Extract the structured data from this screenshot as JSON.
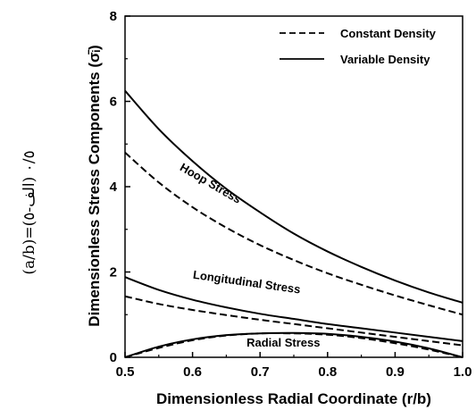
{
  "chart_data": {
    "type": "line",
    "xlabel": "Dimensionless Radial Coordinate (r/b)",
    "ylabel": "Dimensionless Stress Components (σ̄ᵢ)",
    "side_label": "(a/b)=٠/٥ (الف-٥)",
    "xlim": [
      0.5,
      1.0
    ],
    "ylim": [
      0,
      8
    ],
    "x_ticks": [
      "0.5",
      "0.6",
      "0.7",
      "0.8",
      "0.9",
      "1.0"
    ],
    "y_ticks": [
      "0",
      "2",
      "4",
      "6",
      "8"
    ],
    "legend": {
      "position": "top-right",
      "entries": [
        {
          "label": "Constant Density",
          "style": "dashed"
        },
        {
          "label": "Variable Density",
          "style": "solid"
        }
      ]
    },
    "annotations": [
      {
        "text": "Hoop Stress",
        "x": 0.58,
        "y": 4.4
      },
      {
        "text": "Longitudinal Stress",
        "x": 0.6,
        "y": 1.85
      },
      {
        "text": "Radial Stress",
        "x": 0.68,
        "y": 0.25
      }
    ],
    "series": [
      {
        "group": "hoop",
        "style": "solid",
        "x": [
          0.5,
          0.55,
          0.6,
          0.65,
          0.7,
          0.75,
          0.8,
          0.85,
          0.9,
          0.95,
          1.0
        ],
        "y": [
          6.25,
          5.35,
          4.6,
          3.95,
          3.4,
          2.9,
          2.48,
          2.12,
          1.8,
          1.52,
          1.28
        ]
      },
      {
        "group": "hoop",
        "style": "dashed",
        "x": [
          0.5,
          0.55,
          0.6,
          0.65,
          0.7,
          0.75,
          0.8,
          0.85,
          0.9,
          0.95,
          1.0
        ],
        "y": [
          4.8,
          4.1,
          3.52,
          3.04,
          2.63,
          2.28,
          1.97,
          1.7,
          1.45,
          1.22,
          1.0
        ]
      },
      {
        "group": "longitudinal",
        "style": "solid",
        "x": [
          0.5,
          0.55,
          0.6,
          0.65,
          0.7,
          0.75,
          0.8,
          0.85,
          0.9,
          0.95,
          1.0
        ],
        "y": [
          1.88,
          1.58,
          1.35,
          1.17,
          1.02,
          0.9,
          0.78,
          0.68,
          0.58,
          0.48,
          0.38
        ]
      },
      {
        "group": "longitudinal",
        "style": "dashed",
        "x": [
          0.5,
          0.55,
          0.6,
          0.65,
          0.7,
          0.75,
          0.8,
          0.85,
          0.9,
          0.95,
          1.0
        ],
        "y": [
          1.43,
          1.25,
          1.11,
          0.99,
          0.88,
          0.78,
          0.68,
          0.58,
          0.48,
          0.38,
          0.28
        ]
      },
      {
        "group": "radial",
        "style": "solid",
        "x": [
          0.5,
          0.55,
          0.6,
          0.65,
          0.7,
          0.75,
          0.8,
          0.85,
          0.9,
          0.95,
          1.0
        ],
        "y": [
          0.0,
          0.25,
          0.42,
          0.52,
          0.56,
          0.57,
          0.55,
          0.48,
          0.37,
          0.21,
          0.0
        ]
      },
      {
        "group": "radial",
        "style": "dashed",
        "x": [
          0.5,
          0.55,
          0.6,
          0.65,
          0.7,
          0.75,
          0.8,
          0.85,
          0.9,
          0.95,
          1.0
        ],
        "y": [
          0.0,
          0.22,
          0.4,
          0.51,
          0.56,
          0.56,
          0.53,
          0.45,
          0.33,
          0.18,
          0.0
        ]
      }
    ]
  }
}
